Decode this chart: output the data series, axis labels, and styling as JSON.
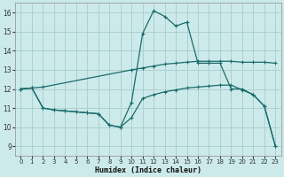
{
  "xlabel": "Humidex (Indice chaleur)",
  "bg_color": "#cceaea",
  "grid_color": "#aacccc",
  "line_color": "#1a6b6b",
  "xlim": [
    -0.5,
    23.5
  ],
  "ylim": [
    8.5,
    16.5
  ],
  "xticks": [
    0,
    1,
    2,
    3,
    4,
    5,
    6,
    7,
    8,
    9,
    10,
    11,
    12,
    13,
    14,
    15,
    16,
    17,
    18,
    19,
    20,
    21,
    22,
    23
  ],
  "yticks": [
    9,
    10,
    11,
    12,
    13,
    14,
    15,
    16
  ],
  "curve1_x": [
    0,
    1,
    2,
    10,
    11,
    12,
    13,
    14,
    15,
    16,
    17,
    18,
    19,
    20,
    21,
    22,
    23
  ],
  "curve1_y": [
    12.0,
    12.05,
    12.1,
    13.0,
    13.1,
    13.2,
    13.3,
    13.35,
    13.4,
    13.45,
    13.45,
    13.45,
    13.45,
    13.4,
    13.4,
    13.4,
    13.35
  ],
  "curve2_x": [
    0,
    1,
    2,
    3,
    4,
    5,
    6,
    7,
    8,
    9,
    10,
    11,
    12,
    13,
    14,
    15,
    16,
    17,
    18,
    19,
    20,
    21,
    22,
    23
  ],
  "curve2_y": [
    12.0,
    12.05,
    11.0,
    10.9,
    10.85,
    10.8,
    10.75,
    10.7,
    10.1,
    10.0,
    11.3,
    14.9,
    16.1,
    15.8,
    15.3,
    15.5,
    13.35,
    13.35,
    13.35,
    12.0,
    12.0,
    11.7,
    11.1,
    9.0
  ],
  "curve3_x": [
    0,
    1,
    2,
    3,
    4,
    5,
    6,
    7,
    8,
    9,
    10,
    11,
    12,
    13,
    14,
    15,
    16,
    17,
    18,
    19,
    20,
    21,
    22,
    23
  ],
  "curve3_y": [
    12.0,
    12.05,
    11.0,
    10.9,
    10.85,
    10.8,
    10.75,
    10.7,
    10.1,
    10.0,
    10.5,
    11.5,
    11.7,
    11.85,
    11.95,
    12.05,
    12.1,
    12.15,
    12.2,
    12.2,
    11.95,
    11.7,
    11.1,
    9.0
  ]
}
